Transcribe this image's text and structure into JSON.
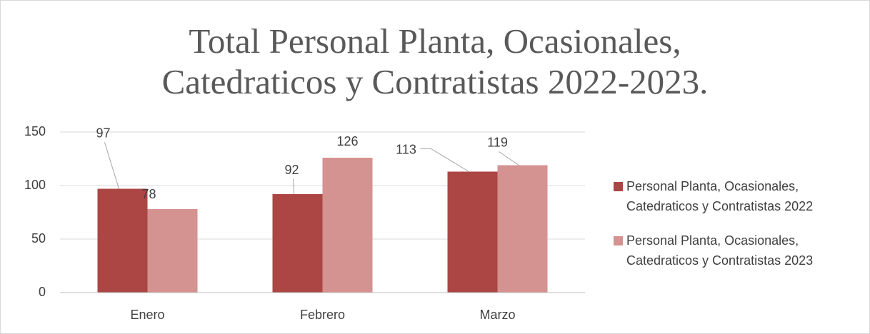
{
  "chart_data": {
    "type": "bar",
    "title": "Total Personal Planta, Ocasionales, Catedraticos y Contratistas 2022-2023.",
    "categories": [
      "Enero",
      "Febrero",
      "Marzo"
    ],
    "series": [
      {
        "name": "Personal Planta, Ocasionales, Catedraticos y Contratistas 2022",
        "color": "#ab4644",
        "values": [
          97,
          92,
          113
        ]
      },
      {
        "name": "Personal Planta, Ocasionales, Catedraticos y Contratistas 2023",
        "color": "#d49290",
        "values": [
          78,
          126,
          119
        ]
      }
    ],
    "ylim": [
      0,
      150
    ],
    "yticks": [
      0,
      50,
      100,
      150
    ],
    "grid": true,
    "legend": "right"
  }
}
